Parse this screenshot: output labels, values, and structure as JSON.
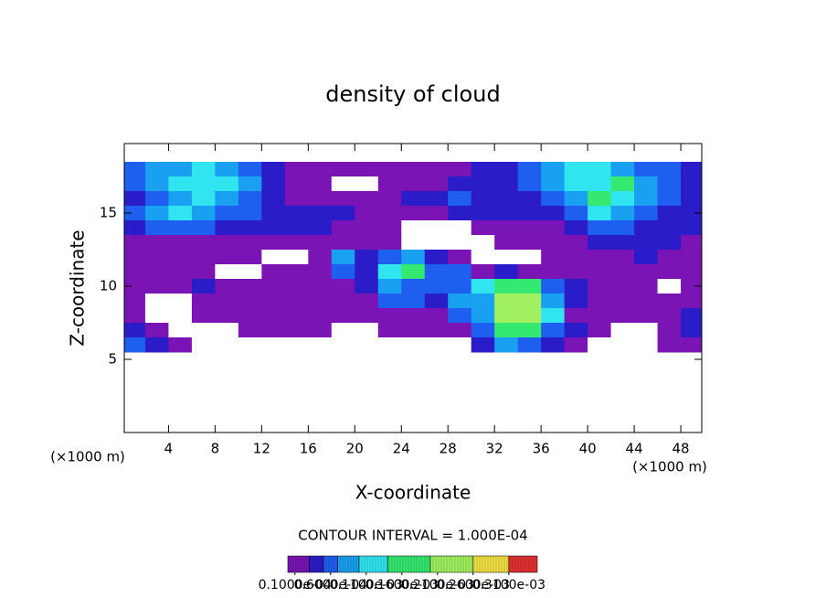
{
  "chart_data": {
    "type": "heatmap",
    "title": "density of cloud",
    "x_label": "X-coordinate",
    "y_label": "Z-coordinate",
    "x_unit": "(×1000 m)",
    "y_unit": "(×1000 m)",
    "subtitle": "CONTOUR INTERVAL = 1.000E-04",
    "xlim": [
      0.2,
      49.8
    ],
    "ylim": [
      0,
      19.75
    ],
    "xticks": [
      4,
      8,
      12,
      16,
      20,
      24,
      28,
      32,
      36,
      40,
      44,
      48
    ],
    "yticks": [
      5,
      10,
      15
    ],
    "x": [
      1,
      3,
      5,
      7,
      9,
      11,
      13,
      15,
      17,
      19,
      21,
      23,
      25,
      27,
      29,
      31,
      33,
      35,
      37,
      39,
      41,
      43,
      45,
      47,
      49
    ],
    "y": [
      18,
      17,
      16,
      15,
      14,
      13,
      12,
      11,
      10,
      9,
      8,
      7,
      6
    ],
    "values": [
      [
        6e-05,
        9e-05,
        9e-05,
        0.00012,
        9e-05,
        6e-05,
        4e-05,
        2e-05,
        2e-05,
        2e-05,
        2e-05,
        2e-05,
        2e-05,
        2e-05,
        2e-05,
        4e-05,
        4e-05,
        6e-05,
        9e-05,
        0.00012,
        0.00012,
        9e-05,
        6e-05,
        6e-05,
        4e-05
      ],
      [
        6e-05,
        9e-05,
        0.00012,
        0.00012,
        0.00012,
        9e-05,
        4e-05,
        2e-05,
        2e-05,
        0,
        0,
        2e-05,
        2e-05,
        2e-05,
        4e-05,
        4e-05,
        4e-05,
        6e-05,
        9e-05,
        0.00012,
        0.00012,
        0.00016,
        9e-05,
        6e-05,
        4e-05
      ],
      [
        4e-05,
        6e-05,
        9e-05,
        0.00012,
        9e-05,
        6e-05,
        4e-05,
        2e-05,
        2e-05,
        2e-05,
        2e-05,
        2e-05,
        4e-05,
        4e-05,
        6e-05,
        4e-05,
        4e-05,
        4e-05,
        6e-05,
        9e-05,
        0.00016,
        0.00012,
        9e-05,
        6e-05,
        4e-05
      ],
      [
        6e-05,
        9e-05,
        0.00012,
        9e-05,
        6e-05,
        6e-05,
        4e-05,
        4e-05,
        4e-05,
        4e-05,
        2e-05,
        2e-05,
        2e-05,
        2e-05,
        4e-05,
        4e-05,
        4e-05,
        4e-05,
        4e-05,
        6e-05,
        0.00012,
        9e-05,
        6e-05,
        4e-05,
        4e-05
      ],
      [
        4e-05,
        6e-05,
        6e-05,
        6e-05,
        4e-05,
        4e-05,
        4e-05,
        4e-05,
        4e-05,
        2e-05,
        2e-05,
        2e-05,
        0,
        0,
        0,
        2e-05,
        2e-05,
        2e-05,
        2e-05,
        4e-05,
        6e-05,
        6e-05,
        4e-05,
        4e-05,
        4e-05
      ],
      [
        2e-05,
        2e-05,
        2e-05,
        2e-05,
        2e-05,
        2e-05,
        2e-05,
        2e-05,
        2e-05,
        2e-05,
        2e-05,
        2e-05,
        0,
        0,
        0,
        0,
        2e-05,
        2e-05,
        2e-05,
        2e-05,
        4e-05,
        4e-05,
        4e-05,
        4e-05,
        2e-05
      ],
      [
        2e-05,
        2e-05,
        2e-05,
        2e-05,
        2e-05,
        2e-05,
        0,
        0,
        2e-05,
        9e-05,
        4e-05,
        6e-05,
        9e-05,
        4e-05,
        2e-05,
        0,
        0,
        0,
        2e-05,
        2e-05,
        2e-05,
        2e-05,
        4e-05,
        2e-05,
        2e-05
      ],
      [
        2e-05,
        2e-05,
        2e-05,
        2e-05,
        0,
        0,
        2e-05,
        2e-05,
        2e-05,
        6e-05,
        4e-05,
        0.00012,
        0.00016,
        6e-05,
        6e-05,
        2e-05,
        4e-05,
        2e-05,
        2e-05,
        2e-05,
        2e-05,
        2e-05,
        2e-05,
        2e-05,
        2e-05
      ],
      [
        2e-05,
        2e-05,
        2e-05,
        4e-05,
        2e-05,
        2e-05,
        2e-05,
        2e-05,
        2e-05,
        2e-05,
        4e-05,
        9e-05,
        6e-05,
        6e-05,
        6e-05,
        0.00012,
        0.00016,
        0.00016,
        6e-05,
        4e-05,
        2e-05,
        2e-05,
        2e-05,
        0,
        2e-05
      ],
      [
        2e-05,
        0,
        0,
        2e-05,
        2e-05,
        2e-05,
        2e-05,
        2e-05,
        2e-05,
        2e-05,
        2e-05,
        6e-05,
        6e-05,
        4e-05,
        9e-05,
        9e-05,
        0.00022,
        0.00022,
        9e-05,
        4e-05,
        2e-05,
        2e-05,
        2e-05,
        2e-05,
        2e-05
      ],
      [
        2e-05,
        0,
        0,
        2e-05,
        2e-05,
        2e-05,
        2e-05,
        2e-05,
        2e-05,
        2e-05,
        2e-05,
        2e-05,
        2e-05,
        2e-05,
        6e-05,
        9e-05,
        0.00022,
        0.00022,
        0.00012,
        2e-05,
        2e-05,
        2e-05,
        2e-05,
        2e-05,
        4e-05
      ],
      [
        4e-05,
        2e-05,
        0,
        0,
        0,
        2e-05,
        2e-05,
        2e-05,
        2e-05,
        0,
        0,
        2e-05,
        2e-05,
        2e-05,
        2e-05,
        6e-05,
        0.00016,
        0.00016,
        6e-05,
        4e-05,
        2e-05,
        0,
        0,
        2e-05,
        4e-05
      ],
      [
        6e-05,
        4e-05,
        2e-05,
        0,
        0,
        0,
        0,
        0,
        0,
        0,
        0,
        0,
        0,
        0,
        0,
        4e-05,
        9e-05,
        6e-05,
        4e-05,
        2e-05,
        0,
        0,
        0,
        2e-05,
        2e-05
      ]
    ],
    "color_levels": [
      1e-05,
      3e-05,
      5e-05,
      7e-05,
      0.0001,
      0.00014,
      0.0002,
      0.00026,
      0.00031
    ],
    "colors": [
      "#7a14b4",
      "#2a1cc8",
      "#1f5ff0",
      "#1aa0f0",
      "#30e4f0",
      "#34e870",
      "#a0f060",
      "#f0e040",
      "#e03030"
    ],
    "clim": [
      0,
      0.00035
    ],
    "colorbar_ticks": [
      {
        "value": 1e-05,
        "label": "0.1000e-04"
      },
      {
        "value": 6e-05,
        "label": "0.6000e-04"
      },
      {
        "value": 0.00011,
        "label": "0.1100e-03"
      },
      {
        "value": 0.00016,
        "label": "0.1600e-03"
      },
      {
        "value": 0.00021,
        "label": "0.2100e-03"
      },
      {
        "value": 0.00026,
        "label": "0.2600e-03"
      },
      {
        "value": 0.00031,
        "label": "0.3100e-03"
      }
    ]
  }
}
